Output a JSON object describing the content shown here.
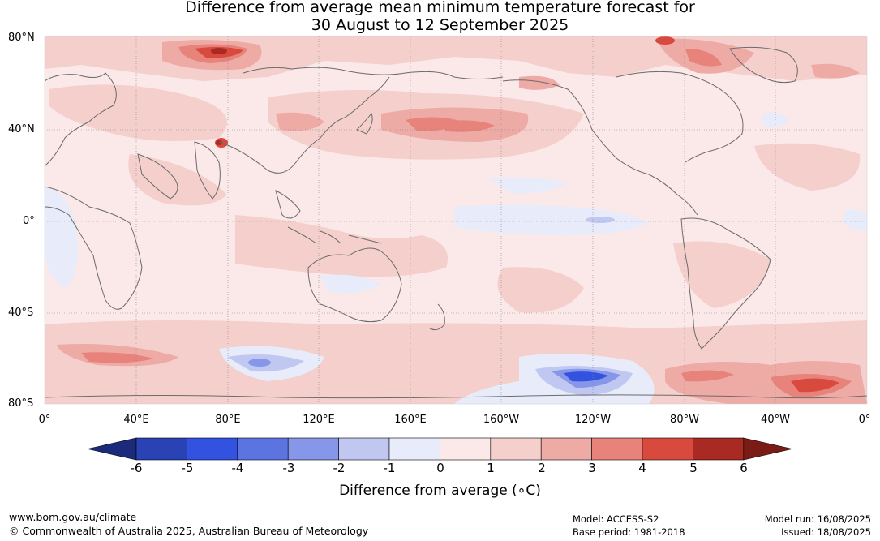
{
  "title_line1": "Difference from average mean minimum temperature forecast for",
  "title_line2": "30 August to 12 September 2025",
  "lat_labels": [
    "80°N",
    "40°N",
    "0°",
    "40°S",
    "80°S"
  ],
  "lon_labels": [
    "0°",
    "40°E",
    "80°E",
    "120°E",
    "160°E",
    "160°W",
    "120°W",
    "80°W",
    "40°W",
    "0°"
  ],
  "colorbar": {
    "ticks": [
      "-6",
      "-5",
      "-4",
      "-3",
      "-2",
      "-1",
      "0",
      "1",
      "2",
      "3",
      "4",
      "5",
      "6"
    ],
    "label": "Difference from average (∘C)",
    "colors": [
      "#1c2a7c",
      "#2a43b4",
      "#3352e0",
      "#5c74e0",
      "#8696e8",
      "#c0c8f2",
      "#e8ecfa",
      "#fbe8e8",
      "#f4cfcc",
      "#eeaaa5",
      "#e8837b",
      "#d94a3e",
      "#a82a22",
      "#7a1b16"
    ]
  },
  "map_colors": {
    "ocean_base": "#fbe8e8",
    "warm_1": "#f4cfcc",
    "warm_2": "#eeaaa5",
    "warm_3": "#e8837b",
    "warm_4": "#d94a3e",
    "cool_1": "#e8ecfa",
    "cool_2": "#c0c8f2",
    "cool_3": "#8696e8",
    "cool_4": "#3352e0",
    "coast": "#6b6b6b",
    "grid": "#888888"
  },
  "footer": {
    "url": "www.bom.gov.au/climate",
    "copyright": "© Commonwealth of Australia 2025, Australian Bureau of Meteorology",
    "model": "Model: ACCESS-S2",
    "base_period": "Base period: 1981-2018",
    "model_run": "Model run: 16/08/2025",
    "issued": "Issued: 18/08/2025"
  }
}
